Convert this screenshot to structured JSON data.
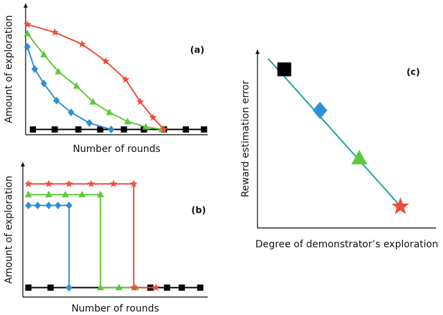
{
  "chart_data": [
    {
      "type": "line",
      "label": "(a)",
      "x_label": "Number of rounds",
      "y_label": "Amount of exploration",
      "xlim": [
        0,
        10
      ],
      "ylim": [
        0,
        10
      ],
      "series": [
        {
          "color": "#000000",
          "marker": "square",
          "x": [
            0.4,
            1.6,
            2.9,
            4.1,
            5.4,
            6.5,
            7.6,
            8.8,
            9.8
          ],
          "values": [
            0.4,
            0.4,
            0.4,
            0.4,
            0.4,
            0.4,
            0.4,
            0.4,
            0.4
          ]
        },
        {
          "color": "#2e8fd6",
          "marker": "diamond",
          "x": [
            0.1,
            0.5,
            1.0,
            1.7,
            2.5,
            3.5,
            4.7
          ],
          "values": [
            6.7,
            5.0,
            3.9,
            2.6,
            1.7,
            0.9,
            0.4
          ]
        },
        {
          "color": "#5dc83a",
          "marker": "triangle",
          "x": [
            0.1,
            1.0,
            1.8,
            2.8,
            3.7,
            4.6,
            5.6,
            6.6,
            7.5
          ],
          "values": [
            7.7,
            6.1,
            4.8,
            3.7,
            2.5,
            1.7,
            1.0,
            0.6,
            0.4
          ]
        },
        {
          "color": "#f04a3a",
          "marker": "star",
          "x": [
            0.1,
            1.6,
            3.1,
            4.4,
            5.5,
            6.3,
            7.0,
            7.6
          ],
          "values": [
            8.4,
            7.8,
            6.9,
            5.6,
            4.2,
            2.5,
            1.3,
            0.4
          ]
        }
      ]
    },
    {
      "type": "line",
      "label": "(b)",
      "x_label": "Number of rounds",
      "y_label": "Amount of exploration",
      "xlim": [
        0,
        10
      ],
      "ylim": [
        0,
        10
      ],
      "series": [
        {
          "color": "#000000",
          "marker": "square",
          "x": [
            0.3,
            1.5,
            6.9,
            7.8,
            8.6,
            9.6
          ],
          "values": [
            0.7,
            0.7,
            0.7,
            0.7,
            0.7,
            0.7
          ]
        },
        {
          "color": "#2e8fd6",
          "marker": "diamond",
          "x": [
            0.3,
            0.8,
            1.4,
            1.9,
            2.5,
            2.5
          ],
          "values": [
            6.8,
            6.8,
            6.8,
            6.8,
            6.8,
            0.7
          ]
        },
        {
          "color": "#5dc83a",
          "marker": "triangle",
          "x": [
            0.3,
            1.4,
            2.3,
            3.2,
            4.2,
            4.2,
            5.2,
            6.1
          ],
          "values": [
            7.6,
            7.6,
            7.6,
            7.6,
            7.6,
            0.7,
            0.7,
            0.7
          ]
        },
        {
          "color": "#f04a3a",
          "marker": "star",
          "x": [
            0.3,
            1.4,
            2.5,
            3.7,
            4.9,
            6.0,
            6.0,
            7.2
          ],
          "values": [
            8.4,
            8.4,
            8.4,
            8.4,
            8.4,
            8.4,
            0.7,
            0.7
          ]
        }
      ]
    },
    {
      "type": "scatter",
      "label": "(c)",
      "x_label": "Degree of demonstrator’s exploration",
      "y_label": "Reward estimation error",
      "xlim": [
        0,
        10
      ],
      "ylim": [
        0,
        10
      ],
      "fit_line": {
        "color": "#1aa39a",
        "x": [
          0.6,
          8.2
        ],
        "values": [
          9.5,
          1.0
        ]
      },
      "series": [
        {
          "color": "#000000",
          "marker": "square",
          "x": [
            1.5
          ],
          "values": [
            8.9
          ]
        },
        {
          "color": "#2e8fd6",
          "marker": "diamond",
          "x": [
            3.5
          ],
          "values": [
            6.6
          ]
        },
        {
          "color": "#5dc83a",
          "marker": "triangle",
          "x": [
            5.7
          ],
          "values": [
            3.9
          ]
        },
        {
          "color": "#f04a3a",
          "marker": "star",
          "x": [
            8.0
          ],
          "values": [
            1.2
          ]
        }
      ]
    }
  ]
}
